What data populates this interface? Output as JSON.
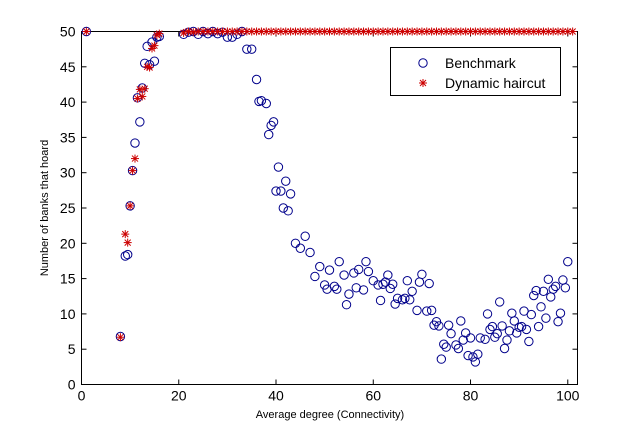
{
  "chart_data": {
    "type": "scatter",
    "title": "",
    "xlabel": "Average degree (Connectivity)",
    "ylabel": "Number of banks that hoard",
    "xlim": [
      0,
      102
    ],
    "ylim": [
      0,
      50
    ],
    "x_ticks": [
      0,
      20,
      40,
      60,
      80,
      100
    ],
    "y_ticks": [
      0,
      5,
      10,
      15,
      20,
      25,
      30,
      35,
      40,
      45,
      50
    ],
    "grid": false,
    "legend_position": "top-right",
    "colors": {
      "benchmark": "#00008b",
      "dynamic_haircut": "#cc0000",
      "axes": "#000000"
    },
    "series": [
      {
        "name": "Benchmark",
        "marker": "circle",
        "points": [
          [
            1,
            50
          ],
          [
            8,
            6.8
          ],
          [
            9,
            18.2
          ],
          [
            9.5,
            18.4
          ],
          [
            10,
            25.3
          ],
          [
            10.5,
            30.3
          ],
          [
            11,
            34.2
          ],
          [
            11.5,
            40.6
          ],
          [
            12,
            37.2
          ],
          [
            12.5,
            42
          ],
          [
            13,
            45.5
          ],
          [
            13.5,
            47.9
          ],
          [
            14,
            45.3
          ],
          [
            14.5,
            48.5
          ],
          [
            15,
            45.8
          ],
          [
            15.5,
            49.2
          ],
          [
            16,
            49.3
          ],
          [
            21,
            49.6
          ],
          [
            22,
            49.9
          ],
          [
            23,
            50
          ],
          [
            24,
            49.6
          ],
          [
            25,
            50
          ],
          [
            26,
            49.7
          ],
          [
            27,
            50
          ],
          [
            28,
            49.7
          ],
          [
            29,
            49.9
          ],
          [
            30,
            49.2
          ],
          [
            31,
            49.2
          ],
          [
            32,
            49.6
          ],
          [
            33,
            50
          ],
          [
            34,
            47.5
          ],
          [
            35,
            47.5
          ],
          [
            36,
            43.2
          ],
          [
            36.5,
            40.1
          ],
          [
            37,
            40.2
          ],
          [
            38,
            39.8
          ],
          [
            38.5,
            35.4
          ],
          [
            39,
            36.7
          ],
          [
            39.5,
            37.2
          ],
          [
            40,
            27.4
          ],
          [
            40.5,
            30.8
          ],
          [
            41,
            27.4
          ],
          [
            41.5,
            25
          ],
          [
            42,
            28.8
          ],
          [
            42.5,
            24.6
          ],
          [
            43,
            27
          ],
          [
            44,
            20
          ],
          [
            45,
            19.3
          ],
          [
            46,
            21
          ],
          [
            47,
            18.7
          ],
          [
            48,
            15.3
          ],
          [
            49,
            16.7
          ],
          [
            50,
            14.1
          ],
          [
            50.5,
            13.5
          ],
          [
            51,
            16.2
          ],
          [
            52,
            13.9
          ],
          [
            52.5,
            13.5
          ],
          [
            53,
            17.4
          ],
          [
            54,
            15.5
          ],
          [
            54.5,
            11.3
          ],
          [
            55,
            12.8
          ],
          [
            56,
            15.8
          ],
          [
            56.5,
            13.7
          ],
          [
            57,
            16.3
          ],
          [
            58,
            13.4
          ],
          [
            58.5,
            17.4
          ],
          [
            59,
            16
          ],
          [
            60,
            14.7
          ],
          [
            61,
            14.1
          ],
          [
            61.5,
            11.9
          ],
          [
            62,
            14.2
          ],
          [
            62.5,
            14.5
          ],
          [
            63,
            15.5
          ],
          [
            63.5,
            13.6
          ],
          [
            64,
            14.2
          ],
          [
            64.5,
            11.4
          ],
          [
            65,
            12.2
          ],
          [
            66,
            12
          ],
          [
            66.5,
            12.2
          ],
          [
            67,
            14.7
          ],
          [
            67.5,
            12
          ],
          [
            68,
            13.2
          ],
          [
            69,
            10.5
          ],
          [
            69.5,
            14.5
          ],
          [
            70,
            15.6
          ],
          [
            71,
            10.4
          ],
          [
            71.5,
            14.3
          ],
          [
            72,
            10.5
          ],
          [
            72.5,
            8.4
          ],
          [
            73,
            8.9
          ],
          [
            73.5,
            8.3
          ],
          [
            74,
            3.6
          ],
          [
            74.5,
            5.7
          ],
          [
            75,
            5.3
          ],
          [
            75.5,
            8.4
          ],
          [
            76,
            7.2
          ],
          [
            77,
            5.6
          ],
          [
            77.5,
            5.1
          ],
          [
            78,
            9
          ],
          [
            78.5,
            6.3
          ],
          [
            79,
            7.3
          ],
          [
            79.5,
            4.1
          ],
          [
            80,
            6.6
          ],
          [
            80.5,
            3.9
          ],
          [
            81,
            3.2
          ],
          [
            81.5,
            4.3
          ],
          [
            82,
            6.6
          ],
          [
            83,
            6.4
          ],
          [
            83.5,
            10
          ],
          [
            84,
            7.8
          ],
          [
            84.5,
            8.2
          ],
          [
            85,
            6.7
          ],
          [
            85.5,
            7.2
          ],
          [
            86,
            11.7
          ],
          [
            86.5,
            8.3
          ],
          [
            87,
            5.1
          ],
          [
            87.5,
            6.3
          ],
          [
            88,
            7.6
          ],
          [
            88.5,
            10.1
          ],
          [
            89,
            9
          ],
          [
            89.5,
            7.3
          ],
          [
            90,
            8.1
          ],
          [
            90.5,
            8.2
          ],
          [
            91,
            10.4
          ],
          [
            91.5,
            7.8
          ],
          [
            92,
            6.1
          ],
          [
            92.5,
            9.9
          ],
          [
            93,
            12.6
          ],
          [
            93.5,
            13.3
          ],
          [
            94,
            8.2
          ],
          [
            94.5,
            11
          ],
          [
            95,
            13.2
          ],
          [
            95.5,
            9.4
          ],
          [
            96,
            14.9
          ],
          [
            96.5,
            12.4
          ],
          [
            97,
            13.5
          ],
          [
            97.5,
            13.9
          ],
          [
            98,
            8.9
          ],
          [
            98.5,
            10.1
          ],
          [
            99,
            14.8
          ],
          [
            99.5,
            13.7
          ],
          [
            100,
            17.4
          ]
        ]
      },
      {
        "name": "Dynamic haircut",
        "marker": "star",
        "points": [
          [
            1,
            50
          ],
          [
            8,
            6.7
          ],
          [
            9,
            21.3
          ],
          [
            9.5,
            20.1
          ],
          [
            10,
            25.3
          ],
          [
            10.5,
            30.3
          ],
          [
            11,
            32
          ],
          [
            11.5,
            40.5
          ],
          [
            12,
            41.8
          ],
          [
            12.5,
            40.8
          ],
          [
            13,
            41.9
          ],
          [
            13.5,
            45
          ],
          [
            14,
            44.9
          ],
          [
            14.5,
            47.6
          ],
          [
            15,
            48
          ],
          [
            15.5,
            49.5
          ],
          [
            16,
            49.7
          ],
          [
            21,
            49.8
          ],
          [
            22,
            50
          ],
          [
            23,
            49.9
          ],
          [
            24,
            50
          ],
          [
            25,
            50
          ],
          [
            26,
            50
          ],
          [
            27,
            50
          ],
          [
            28,
            50
          ],
          [
            29,
            50
          ],
          [
            30,
            50
          ],
          [
            31,
            50
          ],
          [
            32,
            50
          ],
          [
            33,
            50
          ],
          [
            34,
            50
          ],
          [
            35,
            50
          ],
          [
            36,
            50
          ],
          [
            37,
            50
          ],
          [
            38,
            50
          ],
          [
            39,
            50
          ],
          [
            40,
            50
          ],
          [
            41,
            50
          ],
          [
            42,
            50
          ],
          [
            43,
            50
          ],
          [
            44,
            50
          ],
          [
            45,
            50
          ],
          [
            46,
            50
          ],
          [
            47,
            50
          ],
          [
            48,
            50
          ],
          [
            49,
            50
          ],
          [
            50,
            50
          ],
          [
            51,
            50
          ],
          [
            52,
            50
          ],
          [
            53,
            50
          ],
          [
            54,
            50
          ],
          [
            55,
            50
          ],
          [
            56,
            50
          ],
          [
            57,
            50
          ],
          [
            58,
            50
          ],
          [
            59,
            50
          ],
          [
            60,
            50
          ],
          [
            61,
            50
          ],
          [
            62,
            50
          ],
          [
            63,
            50
          ],
          [
            64,
            50
          ],
          [
            65,
            50
          ],
          [
            66,
            50
          ],
          [
            67,
            50
          ],
          [
            68,
            50
          ],
          [
            69,
            50
          ],
          [
            70,
            50
          ],
          [
            71,
            50
          ],
          [
            72,
            50
          ],
          [
            73,
            50
          ],
          [
            74,
            50
          ],
          [
            75,
            50
          ],
          [
            76,
            50
          ],
          [
            77,
            50
          ],
          [
            78,
            50
          ],
          [
            79,
            50
          ],
          [
            80,
            50
          ],
          [
            81,
            50
          ],
          [
            82,
            50
          ],
          [
            83,
            50
          ],
          [
            84,
            50
          ],
          [
            85,
            50
          ],
          [
            86,
            50
          ],
          [
            87,
            50
          ],
          [
            88,
            50
          ],
          [
            89,
            50
          ],
          [
            90,
            50
          ],
          [
            91,
            50
          ],
          [
            92,
            50
          ],
          [
            93,
            50
          ],
          [
            94,
            50
          ],
          [
            95,
            50
          ],
          [
            96,
            50
          ],
          [
            97,
            50
          ],
          [
            98,
            50
          ],
          [
            99,
            50
          ],
          [
            100,
            50
          ],
          [
            101,
            50
          ]
        ]
      }
    ]
  }
}
